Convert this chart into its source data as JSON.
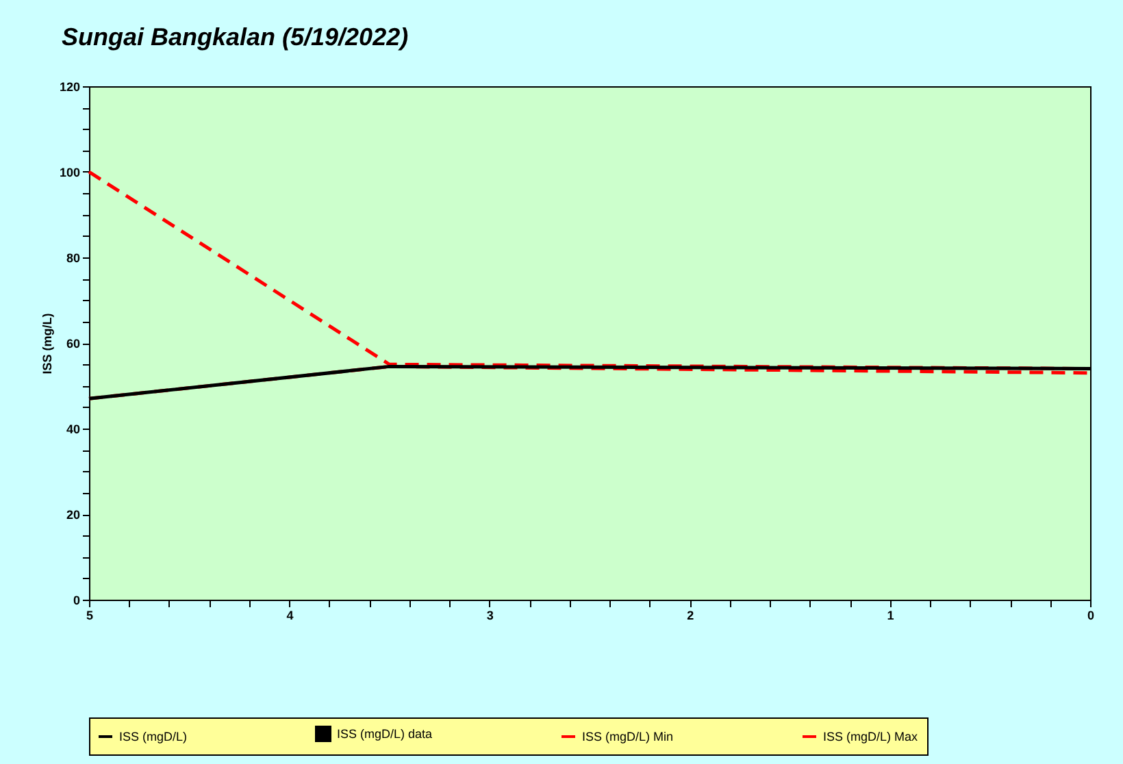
{
  "chart_data": {
    "type": "line",
    "title": "Sungai Bangkalan (5/19/2022)",
    "ylabel": "ISS (mg/L)",
    "x": [
      5,
      3.5,
      0
    ],
    "xlim": [
      5,
      0
    ],
    "xticks": [
      5,
      {
        "value": 4.8,
        "label": null
      },
      {
        "value": 4.6,
        "label": null
      },
      {
        "value": 4.4,
        "label": null
      },
      {
        "value": 4.2,
        "label": null
      },
      4,
      {
        "value": 3.8,
        "label": null
      },
      {
        "value": 3.6,
        "label": null
      },
      {
        "value": 3.4,
        "label": null
      },
      {
        "value": 3.2,
        "label": null
      },
      3,
      {
        "value": 2.8,
        "label": null
      },
      {
        "value": 2.6,
        "label": null
      },
      {
        "value": 2.4,
        "label": null
      },
      {
        "value": 2.2,
        "label": null
      },
      2,
      {
        "value": 1.8,
        "label": null
      },
      {
        "value": 1.6,
        "label": null
      },
      {
        "value": 1.4,
        "label": null
      },
      {
        "value": 1.2,
        "label": null
      },
      1,
      {
        "value": 0.8,
        "label": null
      },
      {
        "value": 0.6,
        "label": null
      },
      {
        "value": 0.4,
        "label": null
      },
      {
        "value": 0.2,
        "label": null
      },
      0
    ],
    "ylim": [
      0,
      120
    ],
    "yticks": [
      0,
      {
        "value": 5,
        "label": null
      },
      {
        "value": 10,
        "label": null
      },
      {
        "value": 15,
        "label": null
      },
      20,
      {
        "value": 25,
        "label": null
      },
      {
        "value": 30,
        "label": null
      },
      {
        "value": 35,
        "label": null
      },
      40,
      {
        "value": 45,
        "label": null
      },
      {
        "value": 50,
        "label": null
      },
      {
        "value": 55,
        "label": null
      },
      60,
      {
        "value": 65,
        "label": null
      },
      {
        "value": 70,
        "label": null
      },
      {
        "value": 75,
        "label": null
      },
      80,
      {
        "value": 85,
        "label": null
      },
      {
        "value": 90,
        "label": null
      },
      {
        "value": 95,
        "label": null
      },
      100,
      {
        "value": 105,
        "label": null
      },
      {
        "value": 110,
        "label": null
      },
      {
        "value": 115,
        "label": null
      },
      120
    ],
    "grid": false,
    "legend": "bottom",
    "series": [
      {
        "name": "ISS (mgD/L)",
        "color": "#000000",
        "line_style": "solid",
        "values": [
          47,
          54.5,
          54
        ]
      },
      {
        "name": "ISS (mgD/L) data",
        "color": "#000000",
        "marker": "square",
        "line_style": "none",
        "values": [
          null,
          null,
          null
        ]
      },
      {
        "name": "ISS (mgD/L) Min",
        "color": "#ff0000",
        "line_style": "dashed",
        "values": [
          47,
          54.5,
          53
        ]
      },
      {
        "name": "ISS (mgD/L) Max",
        "color": "#ff0000",
        "line_style": "dashed",
        "values": [
          100,
          55,
          54
        ]
      }
    ]
  }
}
